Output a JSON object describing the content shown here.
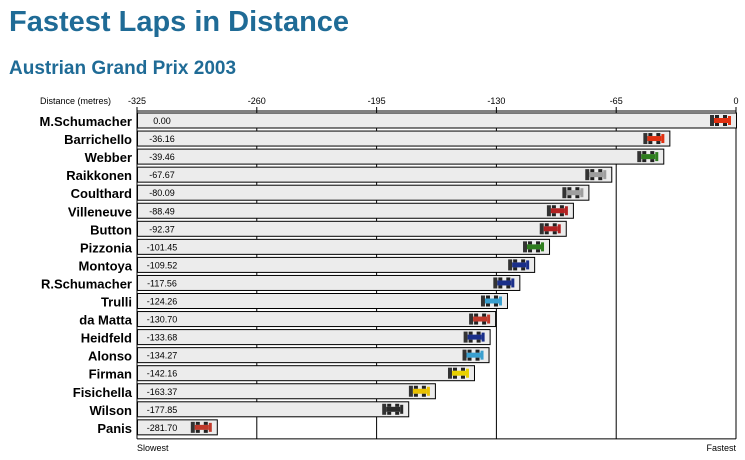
{
  "title": "Fastest Laps in Distance",
  "subtitle": "Austrian Grand Prix 2003",
  "chart_data": {
    "type": "bar",
    "orientation": "horizontal",
    "xlabel": "Distance (metres)",
    "xlim": [
      -325,
      0
    ],
    "x_ticks": [
      -325,
      -260,
      -195,
      -130,
      -65,
      0
    ],
    "x_tick_labels": [
      "-325",
      "-260",
      "-195",
      "-130",
      "-65",
      "0"
    ],
    "grid": true,
    "left_footer": "Slowest",
    "right_footer": "Fastest",
    "categories": [
      "M.Schumacher",
      "Barrichello",
      "Webber",
      "Raikkonen",
      "Coulthard",
      "Villeneuve",
      "Button",
      "Pizzonia",
      "Montoya",
      "R.Schumacher",
      "Trulli",
      "da Matta",
      "Heidfeld",
      "Alonso",
      "Firman",
      "Fisichella",
      "Wilson",
      "Panis"
    ],
    "values": [
      0.0,
      -36.16,
      -39.46,
      -67.67,
      -80.09,
      -88.49,
      -92.37,
      -101.45,
      -109.52,
      -117.56,
      -124.26,
      -130.7,
      -133.68,
      -134.27,
      -142.16,
      -163.37,
      -177.85,
      -281.7
    ],
    "value_labels": [
      "0.00",
      "-36.16",
      "-39.46",
      "-67.67",
      "-80.09",
      "-88.49",
      "-92.37",
      "-101.45",
      "-109.52",
      "-117.56",
      "-124.26",
      "-130.70",
      "-133.68",
      "-134.27",
      "-142.16",
      "-163.37",
      "-177.85",
      "-281.70"
    ],
    "car_colors": [
      "#e03010",
      "#e03010",
      "#2e7d1e",
      "#9e9e9e",
      "#9e9e9e",
      "#b22222",
      "#b22222",
      "#2e7d1e",
      "#1a2f8a",
      "#1a2f8a",
      "#3aa0d0",
      "#c0392b",
      "#1a2f8a",
      "#3aa0d0",
      "#e8d000",
      "#e8c000",
      "#2a2a2a",
      "#c0392b"
    ],
    "bar_color": "#ececec"
  }
}
